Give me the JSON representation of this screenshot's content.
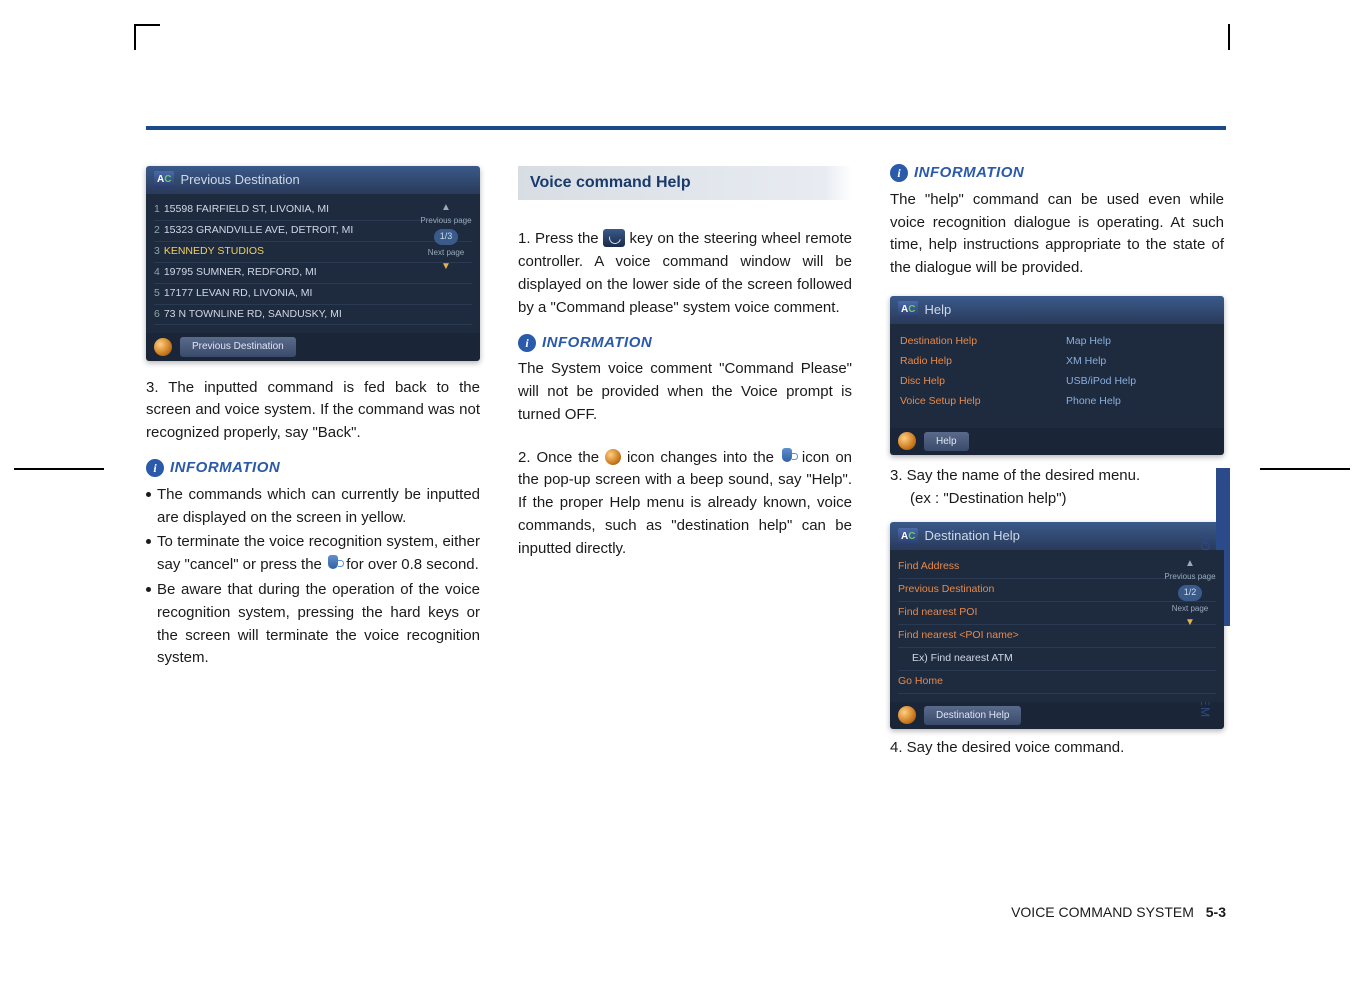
{
  "page": {
    "footerLabel": "VOICE COMMAND SYSTEM",
    "pageNumber": "5-3",
    "sideLabel": "VOICE COMMAND SYSTEM"
  },
  "ruler_color": "#1a4a8a",
  "col1": {
    "shot1": {
      "title": "Previous Destination",
      "rows": [
        {
          "n": "1",
          "text": "15598 FAIRFIELD ST, LIVONIA, MI"
        },
        {
          "n": "2",
          "text": "15323 GRANDVILLE AVE, DETROIT, MI"
        },
        {
          "n": "3",
          "text": "KENNEDY STUDIOS",
          "yellow": true
        },
        {
          "n": "4",
          "text": "19795 SUMNER, REDFORD, MI"
        },
        {
          "n": "5",
          "text": "17177 LEVAN RD, LIVONIA, MI"
        },
        {
          "n": "6",
          "text": "73 N TOWNLINE RD, SANDUSKY, MI"
        }
      ],
      "sidePrev": "Previous page",
      "pager": "1/3",
      "sideNext": "Next page",
      "footerBtn": "Previous Destination"
    },
    "step3": "3. The inputted command is fed back to the screen and voice system. If the command was not recognized properly, say \"Back\".",
    "infoTitle": "INFORMATION",
    "b1": "The commands which can currently be inputted are displayed on the screen in yellow.",
    "b2a": "To terminate the voice recognition system, either say \"cancel\" or press the ",
    "b2b": " for over 0.8  second.",
    "b3": "Be aware that during the operation of the voice recognition system, pressing the hard keys or the screen will terminate the voice recognition system."
  },
  "col2": {
    "sectionTitle": "Voice command Help",
    "s1a": "1. Press the ",
    "s1b": " key on the steering wheel remote controller. A voice command window will be displayed on the lower side of the screen followed by a \"Command please\" system voice comment.",
    "infoTitle": "INFORMATION",
    "info1": "The System voice comment \"Command Please\" will not be provided when the Voice prompt is turned OFF.",
    "s2a": "2. Once the ",
    "s2b": " icon changes into the ",
    "s2c": " icon on the pop-up screen with a beep sound, say \"Help\". If the proper Help menu is already known, voice commands, such as \"destination help\" can be inputted directly."
  },
  "col3": {
    "infoTitle": "INFORMATION",
    "info1": "The \"help\" command can be used even while voice recognition dialogue is operating. At such time, help instructions appropriate to the state of the dialogue will be provided.",
    "shotHelp": {
      "title": "Help",
      "left": [
        "Destination Help",
        "Radio Help",
        "Disc Help",
        "Voice Setup Help"
      ],
      "right": [
        "Map Help",
        "XM Help",
        "USB/iPod Help",
        "Phone Help"
      ],
      "footerBtn": "Help"
    },
    "s3": "3.  Say the name of the desired menu.",
    "s3ex": "(ex : \"Destination help\")",
    "shotDest": {
      "title": "Destination Help",
      "rows": [
        "Find Address",
        "Previous Destination",
        "Find nearest POI",
        "Find nearest <POI name>",
        "Ex) Find nearest ATM",
        "Go Home"
      ],
      "sidePrev": "Previous page",
      "pager": "1/2",
      "sideNext": "Next page",
      "footerBtn": "Destination Help"
    },
    "s4": "4.  Say the desired voice command."
  }
}
